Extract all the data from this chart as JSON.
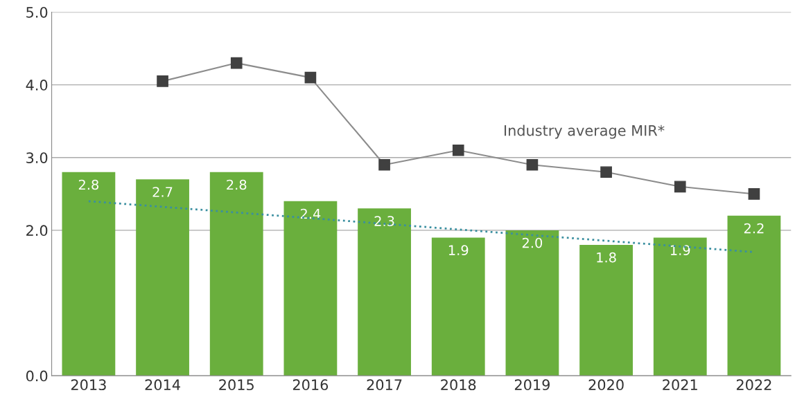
{
  "chart_data": {
    "type": "bar",
    "categories": [
      "2013",
      "2014",
      "2015",
      "2016",
      "2017",
      "2018",
      "2019",
      "2020",
      "2021",
      "2022"
    ],
    "series": [
      {
        "color": "#6aaf3d",
        "values": [
          2.8,
          2.7,
          2.8,
          2.4,
          2.3,
          1.9,
          2.0,
          1.8,
          1.9,
          2.2
        ],
        "value_labels": [
          "2.8",
          "2.7",
          "2.8",
          "2.4",
          "2.3",
          "1.9",
          "2.0",
          "1.8",
          "1.9",
          "2.2"
        ]
      },
      {
        "type": "line",
        "name": "Industry average MIR*",
        "color": "#8c8c8c",
        "marker": "square",
        "line_style": "solid",
        "values": [
          null,
          4.05,
          4.3,
          4.1,
          2.9,
          3.1,
          2.9,
          2.8,
          2.6,
          2.5
        ]
      },
      {
        "type": "line",
        "color": "#3a8fa0",
        "marker": "none",
        "line_style": "dotted",
        "values": [
          2.4,
          null,
          null,
          null,
          null,
          null,
          null,
          null,
          null,
          1.7
        ]
      }
    ],
    "ylim": [
      0,
      5
    ],
    "yticks": [
      {
        "value": 0,
        "label": "0.0"
      },
      {
        "value": 2,
        "label": "2.0"
      },
      {
        "value": 3,
        "label": "3.0"
      },
      {
        "value": 4,
        "label": "4.0"
      },
      {
        "value": 5,
        "label": "5.0"
      }
    ],
    "grid": "y",
    "legend": false
  }
}
